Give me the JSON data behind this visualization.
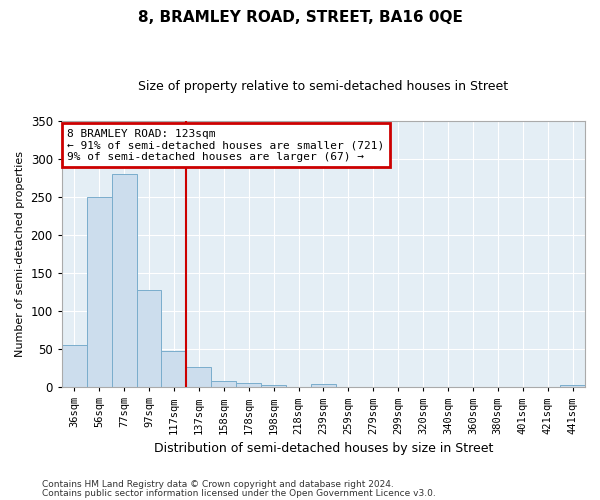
{
  "title": "8, BRAMLEY ROAD, STREET, BA16 0QE",
  "subtitle": "Size of property relative to semi-detached houses in Street",
  "xlabel": "Distribution of semi-detached houses by size in Street",
  "ylabel": "Number of semi-detached properties",
  "categories": [
    "36sqm",
    "56sqm",
    "77sqm",
    "97sqm",
    "117sqm",
    "137sqm",
    "158sqm",
    "178sqm",
    "198sqm",
    "218sqm",
    "239sqm",
    "259sqm",
    "279sqm",
    "299sqm",
    "320sqm",
    "340sqm",
    "360sqm",
    "380sqm",
    "401sqm",
    "421sqm",
    "441sqm"
  ],
  "values": [
    55,
    250,
    280,
    128,
    47,
    26,
    8,
    6,
    3,
    0,
    4,
    0,
    0,
    0,
    0,
    0,
    0,
    0,
    0,
    0,
    3
  ],
  "bar_color": "#ccdded",
  "bar_edge_color": "#7aadcc",
  "red_line_index": 4,
  "annotation_title": "8 BRAMLEY ROAD: 123sqm",
  "annotation_line1": "← 91% of semi-detached houses are smaller (721)",
  "annotation_line2": "9% of semi-detached houses are larger (67) →",
  "annotation_box_color": "#cc0000",
  "ylim": [
    0,
    350
  ],
  "yticks": [
    0,
    50,
    100,
    150,
    200,
    250,
    300,
    350
  ],
  "background_color": "#dde8f0",
  "plot_bg_color": "#e4eef5",
  "grid_color": "#ffffff",
  "footnote1": "Contains HM Land Registry data © Crown copyright and database right 2024.",
  "footnote2": "Contains public sector information licensed under the Open Government Licence v3.0."
}
